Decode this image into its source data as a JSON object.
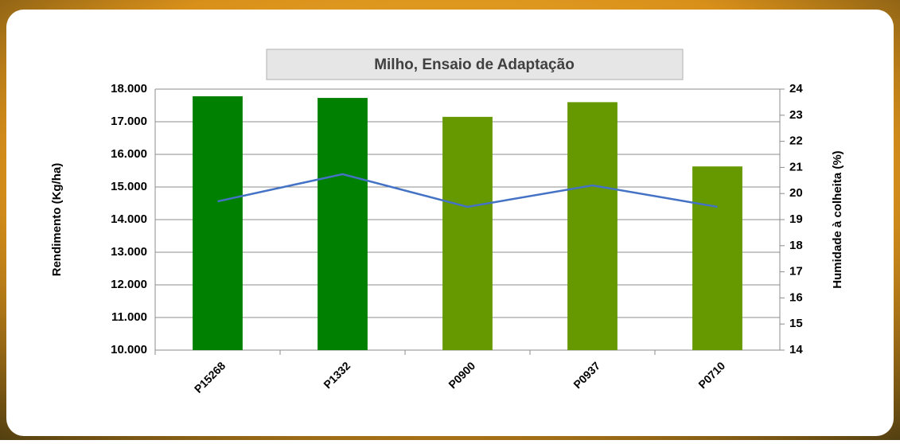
{
  "chart_data": {
    "type": "bar",
    "title": "Milho, Ensaio  de Adaptação",
    "y_label": "Rendimento (Kg/ha)",
    "y2_label": "Humidade à colheita (%)",
    "categories": [
      "P15268",
      "P1332",
      "P0900",
      "P0937",
      "P0710"
    ],
    "series": [
      {
        "type": "bar",
        "colors": [
          "#008000",
          "#008000",
          "#669900",
          "#669900",
          "#669900"
        ],
        "values": [
          17780,
          17730,
          17150,
          17600,
          15630
        ]
      },
      {
        "type": "line",
        "axis": "y2",
        "color": "#4472c4",
        "values": [
          19.7,
          20.74,
          19.49,
          20.31,
          19.49
        ]
      }
    ],
    "ylim": [
      10000,
      18000
    ],
    "yticks": [
      {
        "value": 10000,
        "label": "10.000"
      },
      {
        "value": 11000,
        "label": "11.000"
      },
      {
        "value": 12000,
        "label": "12.000"
      },
      {
        "value": 13000,
        "label": "13.000"
      },
      {
        "value": 14000,
        "label": "14.000"
      },
      {
        "value": 15000,
        "label": "15.000"
      },
      {
        "value": 16000,
        "label": "16.000"
      },
      {
        "value": 17000,
        "label": "17.000"
      },
      {
        "value": 18000,
        "label": "18.000"
      }
    ],
    "y2lim": [
      14,
      24
    ],
    "y2ticks": [
      14,
      15,
      16,
      17,
      18,
      19,
      20,
      21,
      22,
      23,
      24
    ],
    "grid": true
  }
}
